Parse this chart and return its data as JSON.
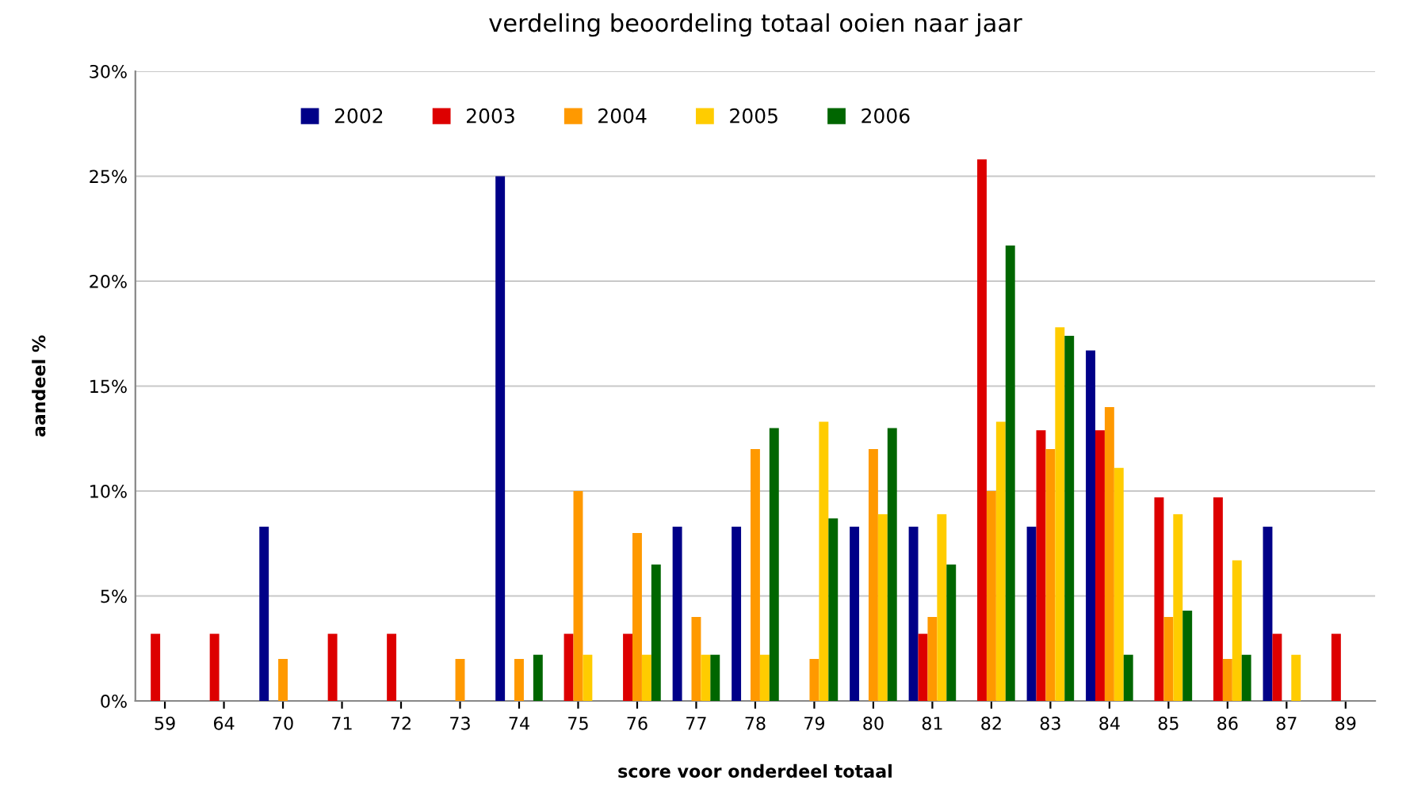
{
  "chart_data": {
    "type": "bar",
    "title": "verdeling beoordeling totaal ooien naar jaar",
    "xlabel": "score voor onderdeel totaal",
    "ylabel": "aandeel %",
    "categories": [
      "59",
      "64",
      "70",
      "71",
      "72",
      "73",
      "74",
      "75",
      "76",
      "77",
      "78",
      "79",
      "80",
      "81",
      "82",
      "83",
      "84",
      "85",
      "86",
      "87",
      "89"
    ],
    "series": [
      {
        "name": "2002",
        "color": "#000088",
        "values": [
          null,
          null,
          8.3,
          null,
          null,
          null,
          25,
          null,
          null,
          8.3,
          8.3,
          null,
          8.3,
          8.3,
          null,
          8.3,
          16.7,
          null,
          null,
          8.3,
          null
        ]
      },
      {
        "name": "2003",
        "color": "#dd0000",
        "values": [
          3.2,
          3.2,
          null,
          3.2,
          3.2,
          null,
          null,
          3.2,
          3.2,
          null,
          null,
          null,
          null,
          3.2,
          25.8,
          12.9,
          12.9,
          9.7,
          9.7,
          3.2,
          3.2
        ]
      },
      {
        "name": "2004",
        "color": "#ff9900",
        "values": [
          null,
          null,
          2.0,
          null,
          null,
          2.0,
          2.0,
          10.0,
          8.0,
          4.0,
          12.0,
          2.0,
          12.0,
          4.0,
          10.0,
          12.0,
          14.0,
          4.0,
          2.0,
          null,
          null
        ]
      },
      {
        "name": "2005",
        "color": "#ffcc00",
        "values": [
          null,
          null,
          null,
          null,
          null,
          null,
          null,
          2.2,
          2.2,
          2.2,
          2.2,
          13.3,
          8.9,
          8.9,
          13.3,
          17.8,
          11.1,
          8.9,
          6.7,
          2.2,
          null
        ]
      },
      {
        "name": "2006",
        "color": "#006600",
        "values": [
          null,
          null,
          null,
          null,
          null,
          null,
          2.2,
          null,
          6.5,
          2.2,
          13.0,
          8.7,
          13.0,
          6.5,
          21.7,
          17.4,
          2.2,
          4.3,
          2.2,
          null,
          null
        ]
      }
    ],
    "ylim": [
      0,
      30
    ],
    "yticks": [
      {
        "value": 0,
        "label": "0%"
      },
      {
        "value": 5,
        "label": "5%"
      },
      {
        "value": 10,
        "label": "10%"
      },
      {
        "value": 15,
        "label": "15%"
      },
      {
        "value": 20,
        "label": "20%"
      },
      {
        "value": 25,
        "label": "25%"
      },
      {
        "value": 30,
        "label": "30%"
      }
    ],
    "grid": "y",
    "legend": "top left"
  }
}
